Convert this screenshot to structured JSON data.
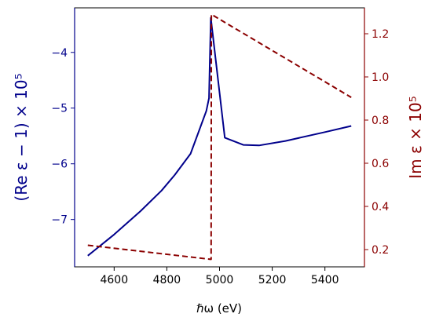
{
  "chart_data": {
    "type": "line",
    "title": "",
    "xlabel": "ℏω (eV)",
    "ylabel_left": "(Re ε − 1) × 10⁵",
    "ylabel_right": "Im ε × 10⁵",
    "xlim": [
      4450,
      5550
    ],
    "xticks": [
      4600,
      4800,
      5000,
      5200,
      5400
    ],
    "ylim_left": [
      -7.85,
      -3.2
    ],
    "yticks_left": [
      -7,
      -6,
      -5,
      -4
    ],
    "ylim_right": [
      0.12,
      1.32
    ],
    "yticks_right": [
      0.2,
      0.4,
      0.6,
      0.8,
      1.0,
      1.2
    ],
    "grid": false,
    "legend": "none",
    "colors": {
      "left_axis": "#00008b",
      "right_axis": "#8b0000"
    },
    "series": [
      {
        "axis": "left",
        "style": "solid",
        "color": "#00008b",
        "x": [
          4500,
          4600,
          4700,
          4780,
          4830,
          4890,
          4950,
          4960,
          4967,
          5020,
          5090,
          5150,
          5250,
          5400,
          5500
        ],
        "y": [
          -7.65,
          -7.27,
          -6.85,
          -6.48,
          -6.2,
          -5.82,
          -5.05,
          -4.82,
          -3.38,
          -5.53,
          -5.66,
          -5.67,
          -5.59,
          -5.43,
          -5.32
        ]
      },
      {
        "axis": "right",
        "style": "dashed",
        "color": "#8b0000",
        "x": [
          4500,
          4966,
          4968,
          4969,
          5500
        ],
        "y": [
          0.22,
          0.155,
          0.155,
          1.29,
          0.905
        ]
      }
    ],
    "tick_labels": {
      "x": [
        "4600",
        "4800",
        "5000",
        "5200",
        "5400"
      ],
      "y_left": [
        "−7",
        "−6",
        "−5",
        "−4"
      ],
      "y_right": [
        "0.2",
        "0.4",
        "0.6",
        "0.8",
        "1.0",
        "1.2"
      ]
    }
  }
}
